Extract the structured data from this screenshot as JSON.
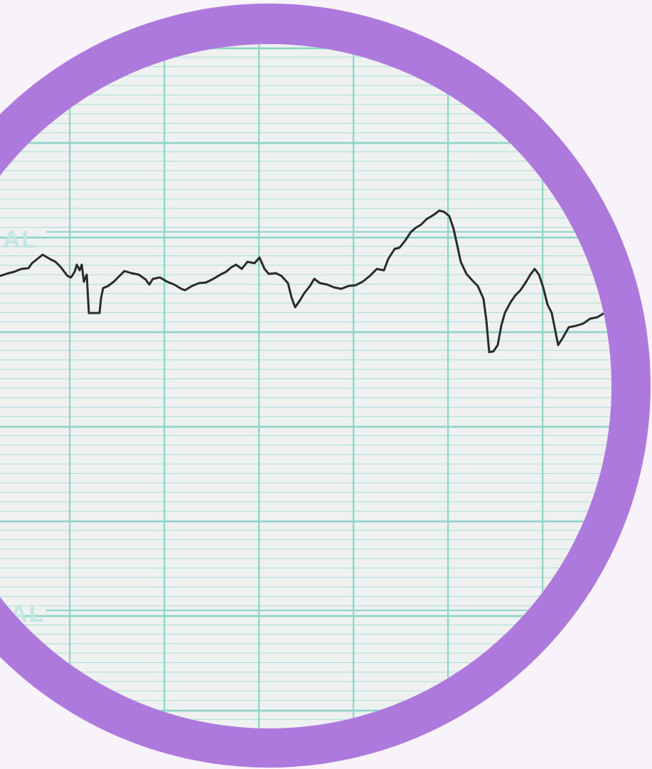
{
  "paper_marks": {
    "labels": [
      "AL",
      "AL"
    ]
  }
}
